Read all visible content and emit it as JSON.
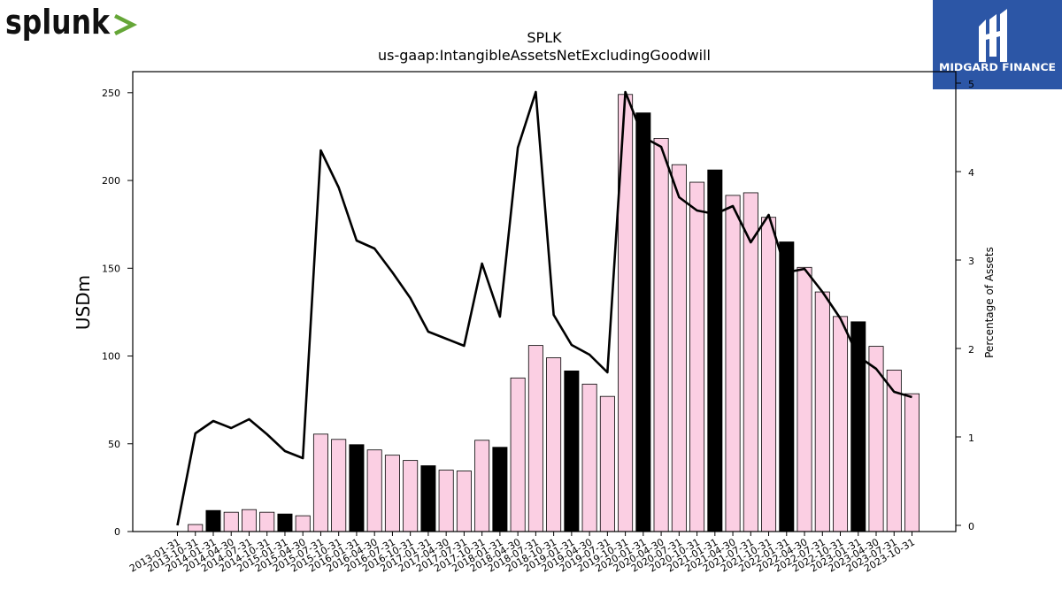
{
  "brand_left": {
    "name": "splunk",
    "suffix": ">"
  },
  "brand_right": {
    "name": "MIDGARD FINANCE"
  },
  "chart_data": {
    "type": "bar+line",
    "title": "SPLK",
    "subtitle": "us-gaap:IntangibleAssetsNetExcludingGoodwill",
    "ylabel": "USDm",
    "y2label": "Percentage of Assets",
    "ylim": [
      0,
      262
    ],
    "y2lim": [
      -0.07,
      5.13
    ],
    "yticks": [
      0,
      50,
      100,
      150,
      200,
      250
    ],
    "y2ticks": [
      0,
      1,
      2,
      3,
      4,
      5
    ],
    "categories": [
      "2013-01-31",
      "2013-10-31",
      "2014-01-31",
      "2014-04-30",
      "2014-07-31",
      "2014-10-31",
      "2015-01-31",
      "2015-04-30",
      "2015-07-31",
      "2015-10-31",
      "2016-01-31",
      "2016-04-30",
      "2016-07-31",
      "2016-10-31",
      "2017-01-31",
      "2017-04-30",
      "2017-07-31",
      "2017-10-31",
      "2018-01-31",
      "2018-04-30",
      "2018-07-31",
      "2018-10-31",
      "2019-01-31",
      "2019-04-30",
      "2019-07-31",
      "2019-10-31",
      "2020-01-31",
      "2020-04-30",
      "2020-07-31",
      "2020-10-31",
      "2021-01-31",
      "2021-04-30",
      "2021-07-31",
      "2021-10-31",
      "2022-01-31",
      "2022-04-30",
      "2022-07-31",
      "2022-10-31",
      "2023-01-31",
      "2023-04-30",
      "2023-07-31",
      "2023-10-31"
    ],
    "series": [
      {
        "type": "bar",
        "values": [
          0,
          4,
          12,
          11,
          12.5,
          11,
          10,
          9,
          55.5,
          52.5,
          49.5,
          46.5,
          43.5,
          40.5,
          37.5,
          35,
          34.5,
          52,
          48,
          87.5,
          106,
          99,
          91.5,
          84,
          77,
          249,
          238.5,
          224,
          209,
          199,
          206,
          191.5,
          193,
          179,
          165,
          150.5,
          136.5,
          122.5,
          119.5,
          105.5,
          92,
          78.5
        ],
        "highlight": [
          false,
          false,
          true,
          false,
          false,
          false,
          true,
          false,
          false,
          false,
          true,
          false,
          false,
          false,
          true,
          false,
          false,
          false,
          true,
          false,
          false,
          false,
          true,
          false,
          false,
          false,
          true,
          false,
          false,
          false,
          true,
          false,
          false,
          false,
          true,
          false,
          false,
          false,
          true,
          false,
          false,
          false
        ],
        "colors": {
          "normal": "#fbcfe3",
          "highlight": "#000000"
        }
      },
      {
        "type": "line",
        "axis": "right",
        "color": "#000000",
        "values": [
          0.0,
          1.04,
          1.18,
          1.1,
          1.2,
          1.03,
          0.84,
          0.76,
          4.24,
          3.82,
          3.22,
          3.13,
          2.86,
          2.57,
          2.19,
          2.11,
          2.03,
          2.96,
          2.36,
          4.27,
          4.9,
          2.38,
          2.04,
          1.93,
          1.73,
          4.9,
          4.39,
          4.28,
          3.71,
          3.56,
          3.52,
          3.61,
          3.2,
          3.51,
          2.86,
          2.9,
          2.64,
          2.34,
          1.91,
          1.77,
          1.51,
          1.45
        ]
      }
    ]
  }
}
